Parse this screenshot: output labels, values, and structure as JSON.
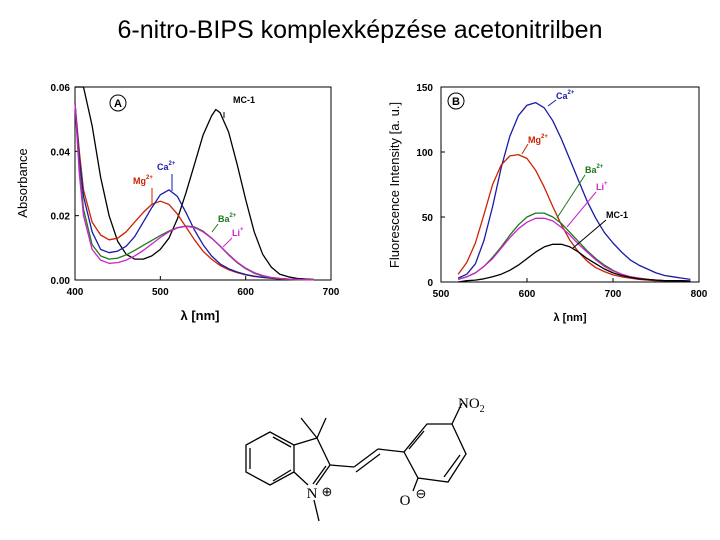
{
  "slide": {
    "title": "6-nitro-BIPS komplexképzése acetonitrilben"
  },
  "colors": {
    "black": "#000000",
    "red": "#cc2200",
    "blue": "#1a1aa8",
    "green": "#1a7a1a",
    "magenta": "#cc22cc"
  },
  "chart_data": [
    {
      "type": "line",
      "panel_label": "A",
      "xlabel": "λ [nm]",
      "ylabel": "Absorbance",
      "xlim": [
        400,
        700
      ],
      "ylim": [
        0,
        0.06
      ],
      "xticks": [
        "400",
        "500",
        "600",
        "700"
      ],
      "yticks": [
        "0.00",
        "0.02",
        "0.04",
        "0.06"
      ],
      "series": [
        {
          "name": "MC-1",
          "ion": "MC-1",
          "sup": "",
          "color": "#000000",
          "x": [
            400,
            410,
            420,
            430,
            440,
            450,
            460,
            470,
            480,
            490,
            500,
            510,
            520,
            530,
            540,
            550,
            560,
            565,
            570,
            580,
            590,
            600,
            610,
            620,
            630,
            640,
            650,
            660,
            670,
            680
          ],
          "y": [
            0.06,
            0.06,
            0.048,
            0.032,
            0.02,
            0.012,
            0.008,
            0.0065,
            0.0065,
            0.0075,
            0.0095,
            0.013,
            0.019,
            0.027,
            0.036,
            0.045,
            0.051,
            0.053,
            0.052,
            0.046,
            0.036,
            0.025,
            0.015,
            0.008,
            0.004,
            0.0018,
            0.001,
            0.0005,
            0.0003,
            0.0002
          ]
        },
        {
          "name": "Mg2+",
          "ion": "Mg",
          "sup": "2+",
          "color": "#cc2200",
          "x": [
            400,
            405,
            410,
            420,
            430,
            440,
            450,
            460,
            470,
            480,
            490,
            500,
            510,
            520,
            530,
            540,
            550,
            560,
            570,
            580,
            590,
            600,
            610,
            620,
            630,
            640,
            650,
            660,
            670,
            680
          ],
          "y": [
            0.055,
            0.04,
            0.028,
            0.018,
            0.014,
            0.0125,
            0.013,
            0.015,
            0.018,
            0.021,
            0.0235,
            0.0245,
            0.0235,
            0.0205,
            0.0165,
            0.0125,
            0.009,
            0.0065,
            0.0045,
            0.0032,
            0.0023,
            0.0016,
            0.0011,
            0.0008,
            0.0005,
            0.0003,
            0.0002,
            0.0001,
            0.0001,
            0.0001
          ]
        },
        {
          "name": "Ca2+",
          "ion": "Ca",
          "sup": "2+",
          "color": "#1a1aa8",
          "x": [
            400,
            405,
            410,
            420,
            430,
            440,
            450,
            460,
            470,
            480,
            490,
            500,
            510,
            520,
            530,
            540,
            550,
            560,
            570,
            580,
            590,
            600,
            610,
            620,
            630,
            640,
            650,
            660,
            670,
            680
          ],
          "y": [
            0.055,
            0.038,
            0.026,
            0.015,
            0.0095,
            0.0085,
            0.009,
            0.0105,
            0.0135,
            0.018,
            0.0225,
            0.0265,
            0.028,
            0.026,
            0.021,
            0.0155,
            0.011,
            0.0075,
            0.005,
            0.0035,
            0.0025,
            0.0017,
            0.0012,
            0.0008,
            0.0006,
            0.0004,
            0.0003,
            0.0002,
            0.0001,
            0.0001
          ]
        },
        {
          "name": "Ba2+",
          "ion": "Ba",
          "sup": "2+",
          "color": "#1a7a1a",
          "x": [
            400,
            405,
            410,
            420,
            430,
            440,
            450,
            460,
            470,
            480,
            490,
            500,
            510,
            520,
            530,
            540,
            550,
            560,
            570,
            580,
            590,
            600,
            610,
            620,
            630,
            640,
            650,
            660,
            670,
            680
          ],
          "y": [
            0.055,
            0.035,
            0.022,
            0.011,
            0.0075,
            0.0065,
            0.0068,
            0.0078,
            0.0092,
            0.0108,
            0.0123,
            0.0138,
            0.0152,
            0.0163,
            0.0168,
            0.0165,
            0.0152,
            0.0131,
            0.0105,
            0.0078,
            0.0054,
            0.0035,
            0.0021,
            0.0012,
            0.0007,
            0.0004,
            0.0002,
            0.0001,
            0.0001,
            0.0001
          ]
        },
        {
          "name": "Li+",
          "ion": "Li",
          "sup": "+",
          "color": "#cc22cc",
          "x": [
            400,
            405,
            410,
            420,
            430,
            440,
            450,
            460,
            470,
            480,
            490,
            500,
            510,
            520,
            530,
            540,
            550,
            560,
            570,
            580,
            590,
            600,
            610,
            620,
            630,
            640,
            650,
            660,
            670,
            680
          ],
          "y": [
            0.055,
            0.033,
            0.02,
            0.0095,
            0.0062,
            0.0052,
            0.0054,
            0.0062,
            0.0075,
            0.0092,
            0.0112,
            0.0132,
            0.015,
            0.0162,
            0.0167,
            0.0163,
            0.015,
            0.013,
            0.0106,
            0.008,
            0.0056,
            0.0037,
            0.0023,
            0.0014,
            0.0008,
            0.0005,
            0.0003,
            0.0002,
            0.0001,
            0.0001
          ]
        }
      ]
    },
    {
      "type": "line",
      "panel_label": "B",
      "xlabel": "λ [nm]",
      "ylabel": "Fluorescence Intensity [a. u.]",
      "xlim": [
        500,
        800
      ],
      "ylim": [
        0,
        150
      ],
      "xticks": [
        "500",
        "600",
        "700",
        "800"
      ],
      "yticks": [
        "0",
        "50",
        "100",
        "150"
      ],
      "series": [
        {
          "name": "Ca2+",
          "ion": "Ca",
          "sup": "2+",
          "color": "#1a1aa8",
          "x": [
            520,
            530,
            540,
            550,
            560,
            570,
            580,
            590,
            600,
            610,
            620,
            630,
            640,
            650,
            660,
            670,
            680,
            690,
            700,
            710,
            720,
            730,
            740,
            750,
            760,
            770,
            780,
            790
          ],
          "y": [
            3,
            6,
            14,
            32,
            58,
            88,
            112,
            128,
            136,
            138,
            134,
            124,
            110,
            94,
            78,
            62,
            49,
            38,
            30,
            23,
            17,
            13,
            10,
            7,
            5,
            4,
            3,
            2
          ]
        },
        {
          "name": "Mg2+",
          "ion": "Mg",
          "sup": "2+",
          "color": "#cc2200",
          "x": [
            520,
            530,
            540,
            550,
            560,
            570,
            580,
            590,
            600,
            610,
            620,
            630,
            640,
            650,
            660,
            670,
            680,
            690,
            700,
            710,
            720,
            730,
            740,
            750,
            760,
            770,
            780,
            790
          ],
          "y": [
            6,
            15,
            30,
            52,
            75,
            90,
            97,
            98,
            95,
            86,
            73,
            58,
            44,
            32,
            23,
            16,
            11,
            8,
            5.5,
            4,
            3,
            2,
            1.5,
            1,
            1,
            1,
            1,
            1
          ]
        },
        {
          "name": "Ba2+",
          "ion": "Ba",
          "sup": "2+",
          "color": "#1a7a1a",
          "x": [
            520,
            530,
            540,
            550,
            560,
            570,
            580,
            590,
            600,
            610,
            620,
            630,
            640,
            650,
            660,
            670,
            680,
            690,
            700,
            710,
            720,
            730,
            740,
            750,
            760,
            770,
            780,
            790
          ],
          "y": [
            2,
            4,
            7,
            12,
            19,
            27,
            36,
            44,
            50,
            53,
            53,
            50,
            45,
            38,
            31,
            24,
            18,
            13,
            9,
            6,
            4,
            3,
            2,
            1.5,
            1,
            1,
            1,
            1
          ]
        },
        {
          "name": "Li+",
          "ion": "Li",
          "sup": "+",
          "color": "#cc22cc",
          "x": [
            520,
            530,
            540,
            550,
            560,
            570,
            580,
            590,
            600,
            610,
            620,
            630,
            640,
            650,
            660,
            670,
            680,
            690,
            700,
            710,
            720,
            730,
            740,
            750,
            760,
            770,
            780,
            790
          ],
          "y": [
            2,
            4,
            7,
            12,
            18,
            26,
            34,
            41,
            46,
            49,
            49,
            47,
            42,
            36,
            29,
            23,
            17,
            12,
            8.5,
            6,
            4,
            3,
            2,
            1.5,
            1,
            1,
            1,
            1
          ]
        },
        {
          "name": "MC-1",
          "ion": "MC-1",
          "sup": "",
          "color": "#000000",
          "x": [
            520,
            530,
            540,
            550,
            560,
            570,
            580,
            590,
            600,
            610,
            620,
            630,
            640,
            650,
            660,
            670,
            680,
            690,
            700,
            710,
            720,
            730,
            740,
            750,
            760,
            770,
            780,
            790
          ],
          "y": [
            0,
            1,
            1.5,
            2.5,
            4,
            6,
            9,
            13,
            18,
            23,
            27,
            29,
            29,
            27,
            23,
            18,
            14,
            10,
            7,
            5,
            3.5,
            2.5,
            2,
            1.5,
            1,
            1,
            1,
            0.5
          ]
        }
      ]
    }
  ],
  "molecule": {
    "nitro_label": "NO2",
    "nitro_main": "NO",
    "nitro_sub": "2",
    "n_label": "N",
    "n_charge": "⊕",
    "o_label": "O",
    "o_charge": "⊖"
  }
}
